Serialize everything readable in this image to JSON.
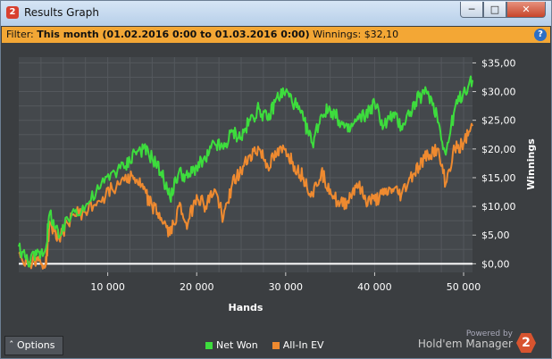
{
  "window": {
    "title": "Results Graph",
    "app_icon_label": "2"
  },
  "filter": {
    "prefix": "Filter:",
    "range": "This month (01.02.2016 0:00 to 01.03.2016 0:00)",
    "winnings": "Winnings: $32,10",
    "help_icon": "?"
  },
  "chart_data": {
    "type": "line",
    "xlabel": "Hands",
    "ylabel": "Winnings",
    "xlim": [
      0,
      51000
    ],
    "ylim": [
      -1.5,
      36
    ],
    "x_ticks": [
      "10 000",
      "20 000",
      "30 000",
      "40 000",
      "50 000"
    ],
    "x_tick_values": [
      10000,
      20000,
      30000,
      40000,
      50000
    ],
    "y_ticks": [
      "$0,00",
      "$5,00",
      "$10,00",
      "$15,00",
      "$20,00",
      "$25,00",
      "$30,00",
      "$35,00"
    ],
    "y_tick_values": [
      0,
      5,
      10,
      15,
      20,
      25,
      30,
      35
    ],
    "grid": true,
    "legend_position": "bottom-center",
    "series": [
      {
        "name": "Net Won",
        "color": "#3ddc3d",
        "x": [
          0,
          1000,
          2000,
          3000,
          3500,
          4500,
          6000,
          7500,
          9000,
          10500,
          12000,
          13000,
          14000,
          15000,
          16000,
          17000,
          18000,
          19000,
          20000,
          21000,
          22000,
          23000,
          24000,
          25000,
          26000,
          27000,
          28000,
          29000,
          30000,
          31000,
          32000,
          33000,
          34000,
          35000,
          36000,
          37000,
          38000,
          39000,
          40000,
          41000,
          42000,
          43000,
          44000,
          45000,
          46000,
          47000,
          48000,
          49000,
          50000,
          51000
        ],
        "values": [
          3,
          0.5,
          1.5,
          2.5,
          9,
          4.5,
          9,
          10,
          13,
          16,
          17,
          19.5,
          20,
          18.5,
          16,
          11.5,
          16,
          15,
          17,
          18,
          21,
          20,
          23,
          22,
          25,
          27,
          25,
          29,
          30,
          28,
          25,
          21,
          26,
          27,
          25,
          23,
          25,
          26,
          28,
          24,
          26,
          24,
          26.5,
          29,
          30,
          26,
          19,
          27,
          30,
          32
        ]
      },
      {
        "name": "All-In EV",
        "color": "#ee8a30",
        "x": [
          0,
          1000,
          2000,
          3000,
          3500,
          4500,
          6000,
          7500,
          9000,
          10500,
          12000,
          13000,
          14000,
          15000,
          16000,
          17000,
          18000,
          19000,
          20000,
          21000,
          22000,
          23000,
          24000,
          25000,
          26000,
          27000,
          28000,
          29000,
          30000,
          31000,
          32000,
          33000,
          34000,
          35000,
          36000,
          37000,
          38000,
          39000,
          40000,
          41000,
          42000,
          43000,
          44000,
          45000,
          46000,
          47000,
          48000,
          49000,
          50000,
          51000
        ],
        "values": [
          2,
          0,
          1,
          -0.5,
          7,
          4.5,
          8.5,
          9,
          11,
          13,
          15.5,
          15,
          13,
          10,
          8,
          5,
          10,
          7,
          12,
          10,
          13,
          8,
          14,
          16,
          19,
          20,
          17,
          19,
          20,
          17,
          15,
          12,
          16,
          13,
          10,
          11,
          14,
          11,
          11,
          12,
          13,
          12,
          15,
          17,
          19,
          20,
          14,
          20,
          21,
          24
        ]
      }
    ],
    "zero_line": 0
  },
  "footer": {
    "options_label": "Options",
    "options_icon": "chevron-up-icon",
    "legend_net_won": "Net Won",
    "legend_ev": "All-In EV",
    "powered_by": "Powered by",
    "brand": "Hold'em Manager",
    "brand_logo": "2"
  }
}
